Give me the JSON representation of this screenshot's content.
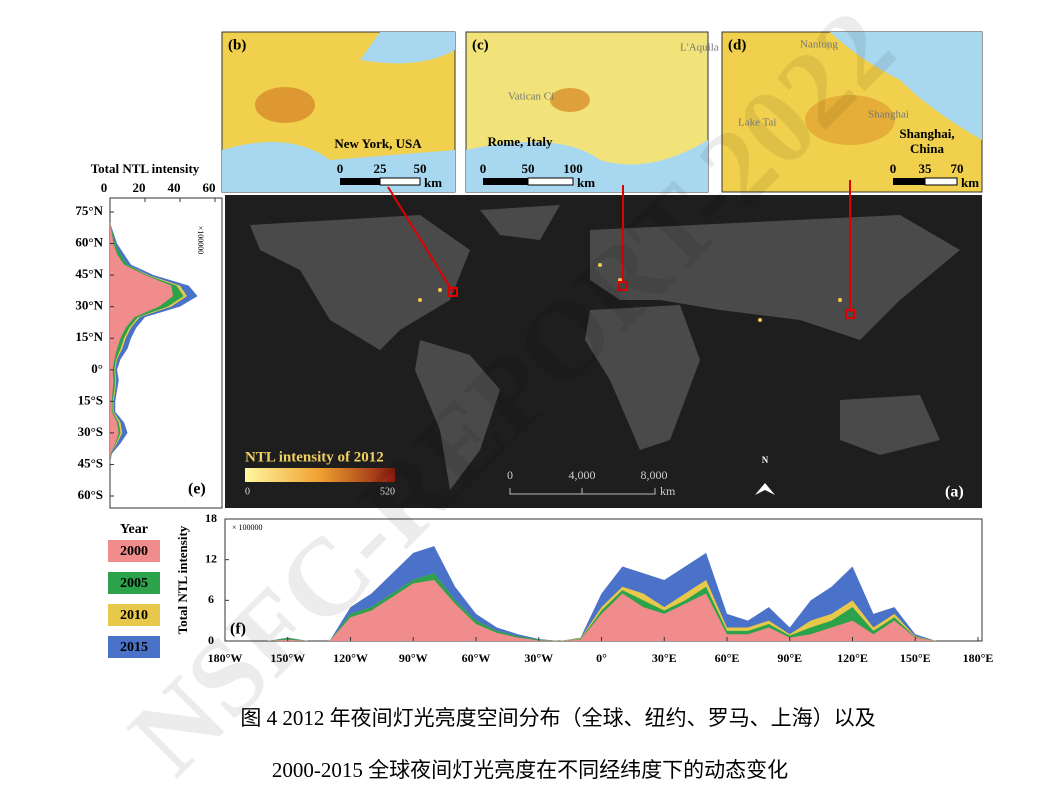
{
  "figure": {
    "insets": [
      {
        "tag": "(b)",
        "place": "New York, USA",
        "scale": [
          "0",
          "25",
          "50"
        ],
        "unit": "km"
      },
      {
        "tag": "(c)",
        "place": "Rome, Italy",
        "scale": [
          "0",
          "50",
          "100"
        ],
        "unit": "km",
        "map_labels": [
          "L'Aquila",
          "Vatican Ci"
        ]
      },
      {
        "tag": "(d)",
        "place": "Shanghai, China",
        "scale": [
          "0",
          "35",
          "70"
        ],
        "unit": "km",
        "map_labels": [
          "Nantong",
          "Lake Tai",
          "Shanghai"
        ]
      }
    ],
    "main_map": {
      "tag": "(a)",
      "legend_title": "NTL intensity of 2012",
      "legend_min": "0",
      "legend_max": "520",
      "scale": [
        "0",
        "4,000",
        "8,000"
      ],
      "unit": "km",
      "north": "N"
    },
    "legend_title": "Year",
    "caption": [
      "图 4 2012 年夜间灯光亮度空间分布（全球、纽约、罗马、上海）以及",
      "2000-2015 全球夜间灯光亮度在不同经纬度下的动态变化"
    ],
    "watermark": "NSFC-REPORT-2022"
  },
  "chart_data": [
    {
      "type": "area",
      "orientation": "horizontal",
      "panel": "(e)",
      "xlabel": "Total NTL intensity",
      "multiplier": "×100000",
      "xlim": [
        0,
        60
      ],
      "xticks": [
        0,
        20,
        40,
        60
      ],
      "ylim": [
        -60,
        75
      ],
      "yticks": [
        {
          "value": 75,
          "label": "75°N"
        },
        {
          "value": 60,
          "label": "60°N"
        },
        {
          "value": 45,
          "label": "45°N"
        },
        {
          "value": 30,
          "label": "30°N"
        },
        {
          "value": 15,
          "label": "15°N"
        },
        {
          "value": 0,
          "label": "0°"
        },
        {
          "value": -15,
          "label": "15°S"
        },
        {
          "value": -30,
          "label": "30°S"
        },
        {
          "value": -45,
          "label": "45°S"
        },
        {
          "value": -60,
          "label": "60°S"
        }
      ],
      "y": [
        75,
        70,
        65,
        60,
        55,
        50,
        45,
        40,
        35,
        30,
        25,
        20,
        15,
        10,
        5,
        0,
        -5,
        -10,
        -15,
        -20,
        -25,
        -30,
        -35,
        -40,
        -45,
        -50,
        -55,
        -60
      ],
      "series": [
        {
          "name": "2000",
          "color": "#f08c8c",
          "values": [
            0,
            0,
            1,
            2,
            4,
            8,
            20,
            35,
            36,
            28,
            14,
            9,
            6,
            4,
            2.5,
            1.5,
            2,
            1.5,
            1,
            1,
            4,
            5,
            3,
            0.3,
            0,
            0,
            0,
            0
          ]
        },
        {
          "name": "2005",
          "color": "#2ca24a",
          "values": [
            0,
            0,
            1.5,
            3,
            6,
            10,
            21,
            38,
            42,
            33,
            16,
            11,
            8,
            6,
            3.5,
            2.5,
            3,
            2.5,
            1.5,
            1.5,
            5,
            6,
            3.5,
            0.5,
            0,
            0,
            0,
            0
          ]
        },
        {
          "name": "2010",
          "color": "#e8c84a",
          "values": [
            0,
            0,
            1.5,
            3,
            6,
            10,
            22,
            40,
            44,
            35,
            17,
            12,
            9,
            7,
            4,
            3,
            3.5,
            3,
            2,
            2,
            6,
            7,
            4,
            0.5,
            0,
            0,
            0,
            0
          ]
        },
        {
          "name": "2015",
          "color": "#4a72c8",
          "values": [
            0,
            0,
            2,
            4,
            8,
            12,
            25,
            45,
            50,
            40,
            20,
            15,
            12,
            10,
            6,
            4,
            5,
            4,
            3,
            3,
            8,
            10,
            6,
            1,
            0,
            0,
            0,
            0
          ]
        }
      ]
    },
    {
      "type": "area",
      "orientation": "vertical",
      "panel": "(f)",
      "ylabel": "Total NTL intensity",
      "multiplier": "× 100000",
      "xlim": [
        -180,
        180
      ],
      "xticks": [
        {
          "value": -180,
          "label": "180°W"
        },
        {
          "value": -150,
          "label": "150°W"
        },
        {
          "value": -120,
          "label": "120°W"
        },
        {
          "value": -90,
          "label": "90°W"
        },
        {
          "value": -60,
          "label": "60°W"
        },
        {
          "value": -30,
          "label": "30°W"
        },
        {
          "value": 0,
          "label": "0°"
        },
        {
          "value": 30,
          "label": "30°E"
        },
        {
          "value": 60,
          "label": "60°E"
        },
        {
          "value": 90,
          "label": "90°E"
        },
        {
          "value": 120,
          "label": "120°E"
        },
        {
          "value": 150,
          "label": "150°E"
        },
        {
          "value": 180,
          "label": "180°E"
        }
      ],
      "ylim": [
        0,
        18
      ],
      "yticks": [
        0,
        6,
        12,
        18
      ],
      "x": [
        -180,
        -170,
        -160,
        -150,
        -140,
        -130,
        -120,
        -110,
        -100,
        -90,
        -80,
        -70,
        -60,
        -50,
        -40,
        -30,
        -20,
        -10,
        0,
        10,
        20,
        30,
        40,
        50,
        60,
        70,
        80,
        90,
        100,
        110,
        120,
        130,
        140,
        150,
        160,
        170,
        180
      ],
      "series": [
        {
          "name": "2000",
          "color": "#f08c8c",
          "values": [
            0,
            0,
            0,
            0.2,
            0,
            0,
            3.5,
            4.5,
            6.5,
            8.5,
            9,
            5.5,
            2.5,
            1.2,
            0.5,
            0.1,
            0,
            0.2,
            4,
            7,
            5,
            4,
            5.5,
            7,
            1,
            1,
            2,
            0.5,
            1,
            2,
            3,
            1,
            3,
            0.5,
            0,
            0,
            0
          ]
        },
        {
          "name": "2005",
          "color": "#2ca24a",
          "values": [
            0,
            0,
            0,
            0.4,
            0,
            0,
            4,
            5,
            7,
            9,
            10,
            6,
            3,
            1.5,
            0.7,
            0.2,
            0,
            0.3,
            4.5,
            7.5,
            6,
            4.5,
            6,
            8,
            1.5,
            1.5,
            2.5,
            0.8,
            2,
            3,
            5,
            1.5,
            3.5,
            0.6,
            0,
            0,
            0
          ]
        },
        {
          "name": "2010",
          "color": "#e8c84a",
          "values": [
            0,
            0,
            0,
            0.4,
            0,
            0,
            4,
            5,
            7,
            9,
            10,
            6,
            3,
            1.5,
            0.7,
            0.2,
            0,
            0.4,
            5,
            8,
            7,
            5,
            7,
            9,
            2,
            2,
            3,
            1,
            3,
            4,
            6,
            2,
            4,
            0.7,
            0,
            0,
            0
          ]
        },
        {
          "name": "2015",
          "color": "#4a72c8",
          "values": [
            0,
            0,
            0,
            0.5,
            0,
            0,
            5,
            7,
            10,
            13,
            14,
            8,
            4,
            2,
            1,
            0.3,
            0,
            0.5,
            7,
            11,
            10,
            9,
            11,
            13,
            4,
            3,
            5,
            2,
            6,
            8,
            11,
            4,
            5,
            1,
            0,
            0,
            0
          ]
        }
      ]
    }
  ]
}
